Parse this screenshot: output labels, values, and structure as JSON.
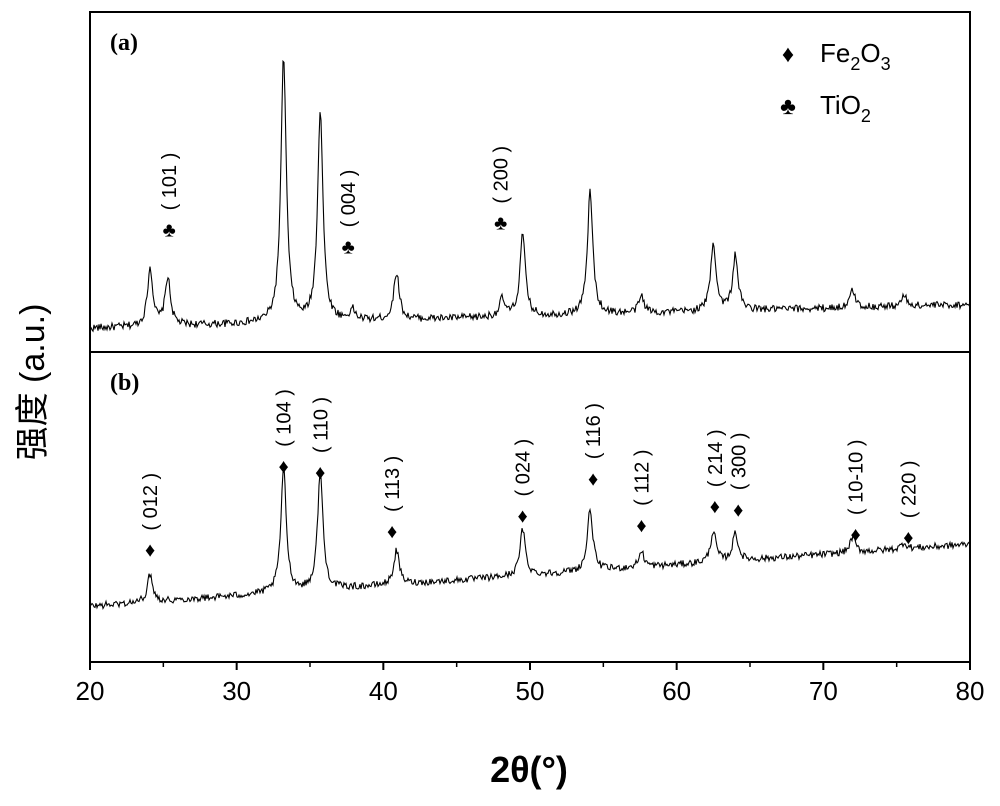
{
  "chart_data": {
    "type": "line",
    "xlabel": "2θ(°)",
    "ylabel": "强度 (a.u.)",
    "xlim": [
      20,
      80
    ],
    "xticks": [
      20,
      30,
      40,
      50,
      60,
      70,
      80
    ],
    "grid": false,
    "legend": {
      "placement": "top-right",
      "entries": [
        {
          "marker": "♦",
          "label_main": "Fe",
          "sub1": "2",
          "mid": "O",
          "sub2": "3"
        },
        {
          "marker": "♣",
          "label_main": "TiO",
          "sub1": "2",
          "mid": "",
          "sub2": ""
        }
      ]
    },
    "panels": [
      {
        "tag": "(a)",
        "baseline_start": 0.07,
        "baseline_end": 0.14,
        "peaks": [
          {
            "x": 24.1,
            "h": 0.17
          },
          {
            "x": 25.3,
            "h": 0.14
          },
          {
            "x": 33.2,
            "h": 0.78
          },
          {
            "x": 35.7,
            "h": 0.62
          },
          {
            "x": 37.9,
            "h": 0.03
          },
          {
            "x": 40.9,
            "h": 0.14
          },
          {
            "x": 48.1,
            "h": 0.05
          },
          {
            "x": 49.5,
            "h": 0.24
          },
          {
            "x": 54.1,
            "h": 0.36
          },
          {
            "x": 57.6,
            "h": 0.05
          },
          {
            "x": 62.5,
            "h": 0.2
          },
          {
            "x": 64.0,
            "h": 0.16
          },
          {
            "x": 72.0,
            "h": 0.05
          },
          {
            "x": 75.5,
            "h": 0.03
          }
        ],
        "annotations": [
          {
            "marker": "♣",
            "x": 25.4,
            "marker_y": 0.34,
            "label": "( 101 )"
          },
          {
            "marker": "♣",
            "x": 37.6,
            "marker_y": 0.29,
            "label": "( 004 )"
          },
          {
            "marker": "♣",
            "x": 48.0,
            "marker_y": 0.36,
            "label": "( 200 )"
          }
        ]
      },
      {
        "tag": "(b)",
        "baseline_start": 0.18,
        "baseline_end": 0.38,
        "peaks": [
          {
            "x": 24.1,
            "h": 0.09
          },
          {
            "x": 33.2,
            "h": 0.4
          },
          {
            "x": 35.7,
            "h": 0.38
          },
          {
            "x": 40.9,
            "h": 0.11
          },
          {
            "x": 49.5,
            "h": 0.15
          },
          {
            "x": 54.1,
            "h": 0.2
          },
          {
            "x": 57.6,
            "h": 0.05
          },
          {
            "x": 62.5,
            "h": 0.1
          },
          {
            "x": 64.0,
            "h": 0.09
          },
          {
            "x": 72.0,
            "h": 0.05
          },
          {
            "x": 75.5,
            "h": 0.02
          }
        ],
        "annotations": [
          {
            "marker": "♦",
            "x": 24.1,
            "marker_y": 0.34,
            "label": "( 012 )"
          },
          {
            "marker": "♦",
            "x": 33.2,
            "marker_y": 0.61,
            "label": "( 104 )"
          },
          {
            "marker": "♦",
            "x": 35.7,
            "marker_y": 0.59,
            "label": "( 110 )"
          },
          {
            "marker": "♦",
            "x": 40.6,
            "marker_y": 0.4,
            "label": "( 113 )"
          },
          {
            "marker": "♦",
            "x": 49.5,
            "marker_y": 0.45,
            "label": "( 024 )"
          },
          {
            "marker": "♦",
            "x": 54.3,
            "marker_y": 0.57,
            "label": "( 116 )"
          },
          {
            "marker": "♦",
            "x": 57.6,
            "marker_y": 0.42,
            "label": "( 112 )"
          },
          {
            "marker": "♦",
            "x": 62.6,
            "marker_y": 0.48,
            "label": "( 214 )"
          },
          {
            "marker": "♦",
            "x": 64.2,
            "marker_y": 0.47,
            "label": "( 300 )"
          },
          {
            "marker": "♦",
            "x": 72.2,
            "marker_y": 0.39,
            "label": "( 10-10 )"
          },
          {
            "marker": "♦",
            "x": 75.8,
            "marker_y": 0.38,
            "label": "( 220 )"
          }
        ]
      }
    ]
  }
}
